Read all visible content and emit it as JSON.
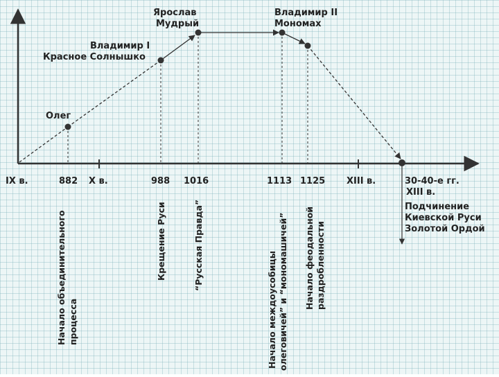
{
  "figure": {
    "line_color": "#333333",
    "background_color": "#edf6f6"
  },
  "rulers": [
    {
      "id": "oleg",
      "name_lines": [
        "Олег"
      ],
      "year": "882"
    },
    {
      "id": "vladimir1",
      "name_lines": [
        "Владимир I",
        "Красное Солнышко"
      ],
      "year": "988"
    },
    {
      "id": "yaroslav",
      "name_lines": [
        "Ярослав",
        "Мудрый"
      ],
      "year": "1016"
    },
    {
      "id": "monomakh",
      "name_lines": [
        "Владимир II",
        "Мономах"
      ],
      "year": "1113"
    }
  ],
  "timeline_labels": [
    "IX в.",
    "882",
    "X в.",
    "988",
    "1016",
    "1113",
    "1125",
    "XIII в.",
    "30-40-е гг."
  ],
  "event_labels": {
    "e882": [
      "Начало объединительного",
      "процесса"
    ],
    "e988": [
      "Крещение Руси"
    ],
    "e1016": [
      "“Русская Правда”"
    ],
    "e1113": [
      "Начало междоусобицы",
      "олеговичей” и “мономашичей”"
    ],
    "e1125": [
      "Начало феодальной",
      "раздробленности"
    ]
  },
  "final_note": [
    "XIII в.",
    "Подчинение",
    "Киевской Руси",
    "Золотой Ордой"
  ]
}
